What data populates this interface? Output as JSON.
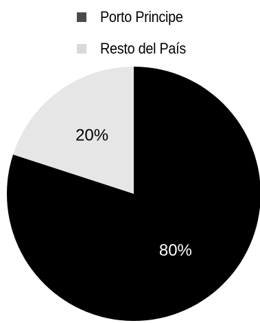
{
  "chart_data": {
    "type": "pie",
    "title": "",
    "legend_placement": "top",
    "slices": [
      {
        "name": "Porto Principe",
        "value": 80,
        "label": "80%",
        "color": "#000000",
        "label_color": "#ffffff",
        "legend_color": "#4a4a4a"
      },
      {
        "name": "Resto del País",
        "value": 20,
        "label": "20%",
        "color": "#e6e6e6",
        "label_color": "#000000",
        "legend_color": "#d9d9d9"
      }
    ]
  }
}
